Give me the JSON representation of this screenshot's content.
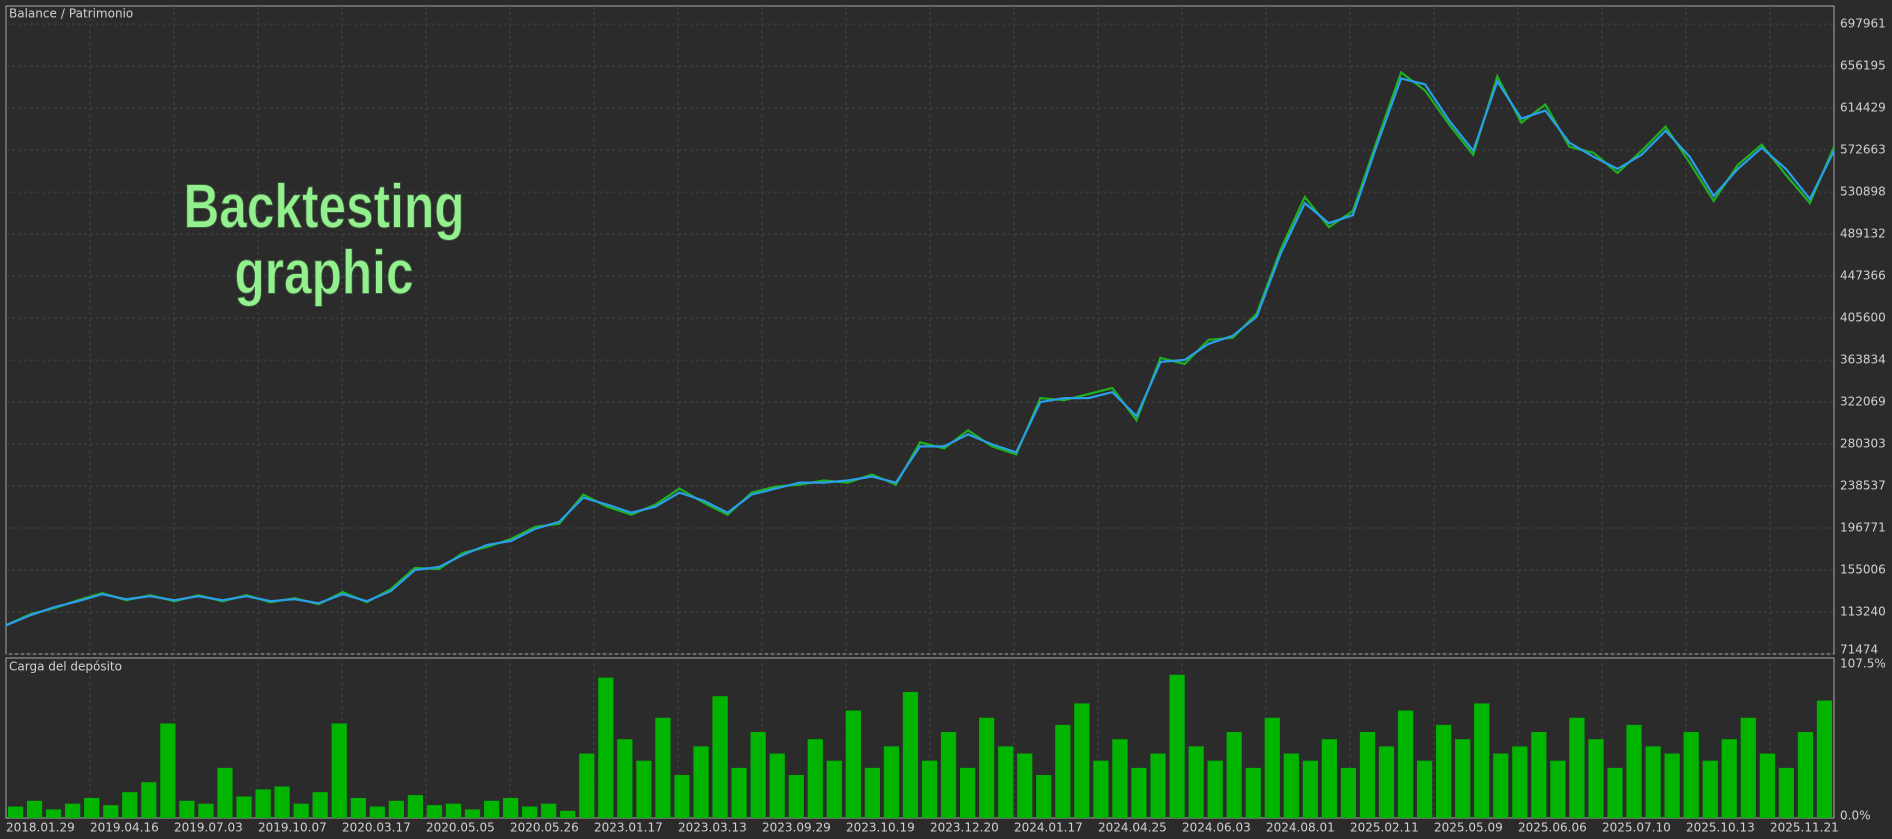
{
  "chart_data": [
    {
      "type": "line",
      "annotation_lines": [
        "Backtesting",
        "graphic"
      ],
      "legend_separator": "/",
      "x_labels": [
        "2018.01.29",
        "2019.04.16",
        "2019.07.03",
        "2019.10.07",
        "2020.03.17",
        "2020.05.05",
        "2020.05.26",
        "2023.01.17",
        "2023.03.13",
        "2023.09.29",
        "2023.10.19",
        "2023.12.20",
        "2024.01.17",
        "2024.04.25",
        "2024.06.03",
        "2024.08.01",
        "2025.02.11",
        "2025.05.09",
        "2025.06.06",
        "2025.07.10",
        "2025.10.13",
        "2025.11.21"
      ],
      "series": [
        {
          "name": "Patrimonio",
          "color": "#1fb01f",
          "values": [
            100000,
            111000,
            117000,
            125000,
            132000,
            125000,
            130000,
            124000,
            130000,
            124000,
            130000,
            123000,
            127000,
            121000,
            133000,
            123000,
            136000,
            157000,
            156000,
            172000,
            178000,
            186000,
            198000,
            201000,
            230000,
            218000,
            210000,
            220000,
            236000,
            222000,
            210000,
            232000,
            238000,
            240000,
            244000,
            242000,
            250000,
            240000,
            282000,
            276000,
            294000,
            278000,
            270000,
            326000,
            324000,
            330000,
            336000,
            304000,
            366000,
            360000,
            384000,
            386000,
            410000,
            474000,
            526000,
            496000,
            512000,
            582000,
            650000,
            632000,
            598000,
            568000,
            646000,
            600000,
            618000,
            576000,
            570000,
            550000,
            572000,
            596000,
            560000,
            522000,
            558000,
            578000,
            548000,
            520000,
            576000
          ]
        },
        {
          "name": "Balance",
          "color": "#2a9ee8",
          "values": [
            100000,
            110000,
            118000,
            124000,
            131000,
            126000,
            129000,
            125000,
            129000,
            125000,
            129000,
            124000,
            126000,
            122000,
            131000,
            124000,
            134000,
            155000,
            158000,
            170000,
            180000,
            184000,
            196000,
            203000,
            227000,
            220000,
            212000,
            218000,
            232000,
            224000,
            212000,
            230000,
            236000,
            242000,
            242000,
            244000,
            248000,
            242000,
            278000,
            278000,
            290000,
            280000,
            272000,
            322000,
            326000,
            326000,
            332000,
            308000,
            362000,
            364000,
            380000,
            388000,
            407000,
            470000,
            520000,
            500000,
            508000,
            578000,
            644000,
            638000,
            602000,
            572000,
            641000,
            604000,
            612000,
            580000,
            566000,
            554000,
            568000,
            592000,
            566000,
            527000,
            554000,
            575000,
            554000,
            524000,
            572000
          ]
        }
      ],
      "ylim": [
        71474,
        716000
      ],
      "yticks": [
        71474,
        113240,
        155006,
        196771,
        238537,
        280303,
        322069,
        363834,
        405600,
        447366,
        489132,
        530898,
        572663,
        614429,
        656195,
        697961
      ],
      "grid": true
    },
    {
      "type": "bar",
      "title": "Carga del depósito",
      "color": "#00b400",
      "values": [
        8,
        12,
        6,
        10,
        14,
        9,
        18,
        25,
        66,
        12,
        10,
        35,
        15,
        20,
        22,
        10,
        18,
        66,
        14,
        8,
        12,
        16,
        9,
        10,
        6,
        12,
        14,
        8,
        10,
        5,
        45,
        98,
        55,
        40,
        70,
        30,
        50,
        85,
        35,
        60,
        45,
        30,
        55,
        40,
        75,
        35,
        50,
        88,
        40,
        60,
        35,
        70,
        50,
        45,
        30,
        65,
        80,
        40,
        55,
        35,
        45,
        100,
        50,
        40,
        60,
        35,
        70,
        45,
        40,
        55,
        35,
        60,
        50,
        75,
        40,
        65,
        55,
        80,
        45,
        50,
        60,
        40,
        70,
        55,
        35,
        65,
        50,
        45,
        60,
        40,
        55,
        70,
        45,
        35,
        60,
        82
      ],
      "ylim": [
        0,
        107.5
      ],
      "yticks": [
        {
          "value": 0,
          "label": "0.0%"
        },
        {
          "value": 107.5,
          "label": "107.5%"
        }
      ]
    }
  ]
}
